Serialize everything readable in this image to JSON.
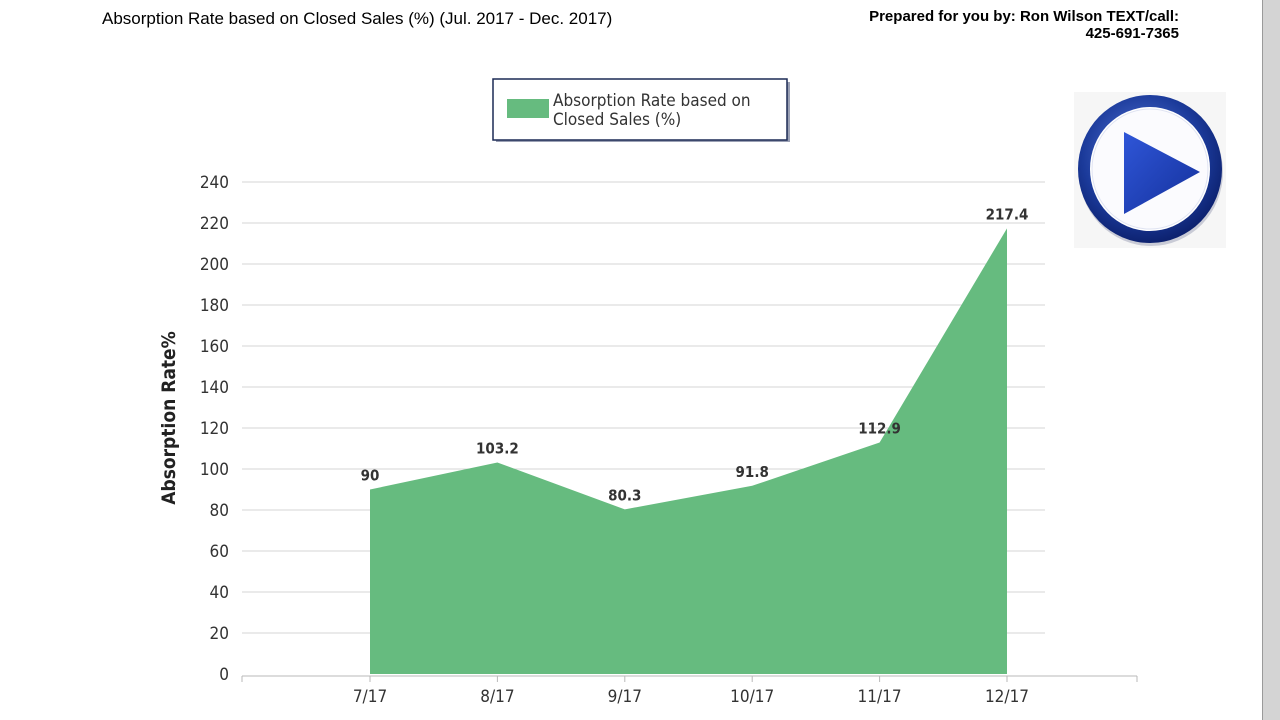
{
  "header": {
    "title": "Absorption Rate based on Closed Sales (%) (Jul. 2017 - Dec. 2017)",
    "prepared_line1": "Prepared for you by: Ron Wilson TEXT/call:",
    "prepared_line2": "425-691-7365"
  },
  "play_button": {
    "icon": "play-icon",
    "colors": {
      "ring": "#1b3a9a",
      "triangle": "#1f44c4",
      "face": "#ffffff"
    }
  },
  "chart_data": {
    "type": "area",
    "categories": [
      "7/17",
      "8/17",
      "9/17",
      "10/17",
      "11/17",
      "12/17"
    ],
    "series": [
      {
        "name": "Absorption Rate based on Closed Sales (%)",
        "values": [
          90,
          103.2,
          80.3,
          91.8,
          112.9,
          217.4
        ],
        "color": "#66bb7f"
      }
    ],
    "data_labels": [
      "90",
      "103.2",
      "80.3",
      "91.8",
      "112.9",
      "217.4"
    ],
    "ylabel": "Absorption Rate%",
    "xlabel": "",
    "ylim": [
      0,
      240
    ],
    "yticks": [
      0,
      20,
      40,
      60,
      80,
      100,
      120,
      140,
      160,
      180,
      200,
      220,
      240
    ],
    "grid": true,
    "legend": {
      "position": "top-center",
      "line1": "Absorption Rate based on",
      "line2": "Closed Sales (%)"
    }
  }
}
